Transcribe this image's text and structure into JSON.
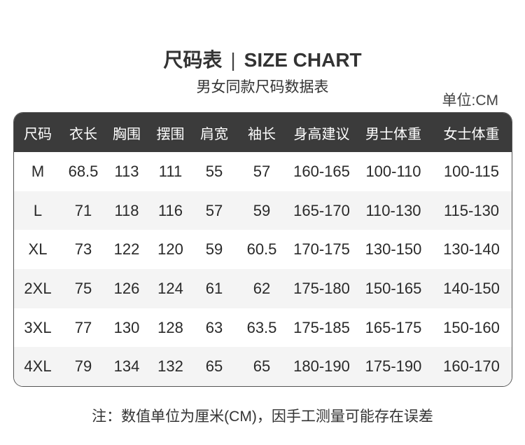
{
  "header": {
    "title_cn": "尺码表",
    "separator": "|",
    "title_en": "SIZE CHART",
    "subtitle": "男女同款尺码数据表",
    "unit": "单位:CM"
  },
  "table": {
    "columns": [
      "尺码",
      "衣长",
      "胸围",
      "摆围",
      "肩宽",
      "袖长",
      "身高建议",
      "男士体重",
      "女士体重"
    ],
    "rows": [
      [
        "M",
        "68.5",
        "113",
        "111",
        "55",
        "57",
        "160-165",
        "100-110",
        "100-115"
      ],
      [
        "L",
        "71",
        "118",
        "116",
        "57",
        "59",
        "165-170",
        "110-130",
        "115-130"
      ],
      [
        "XL",
        "73",
        "122",
        "120",
        "59",
        "60.5",
        "170-175",
        "130-150",
        "130-140"
      ],
      [
        "2XL",
        "75",
        "126",
        "124",
        "61",
        "62",
        "175-180",
        "150-165",
        "140-150"
      ],
      [
        "3XL",
        "77",
        "130",
        "128",
        "63",
        "63.5",
        "175-185",
        "165-175",
        "150-160"
      ],
      [
        "4XL",
        "79",
        "134",
        "132",
        "65",
        "65",
        "180-190",
        "175-190",
        "160-170"
      ]
    ]
  },
  "footer": {
    "note": "注：数值单位为厘米(CM)，因手工测量可能存在误差"
  },
  "colors": {
    "header_bg": "#3b3b3b",
    "alt_row_bg": "#f4f4f4",
    "text": "#2a2a2a"
  }
}
